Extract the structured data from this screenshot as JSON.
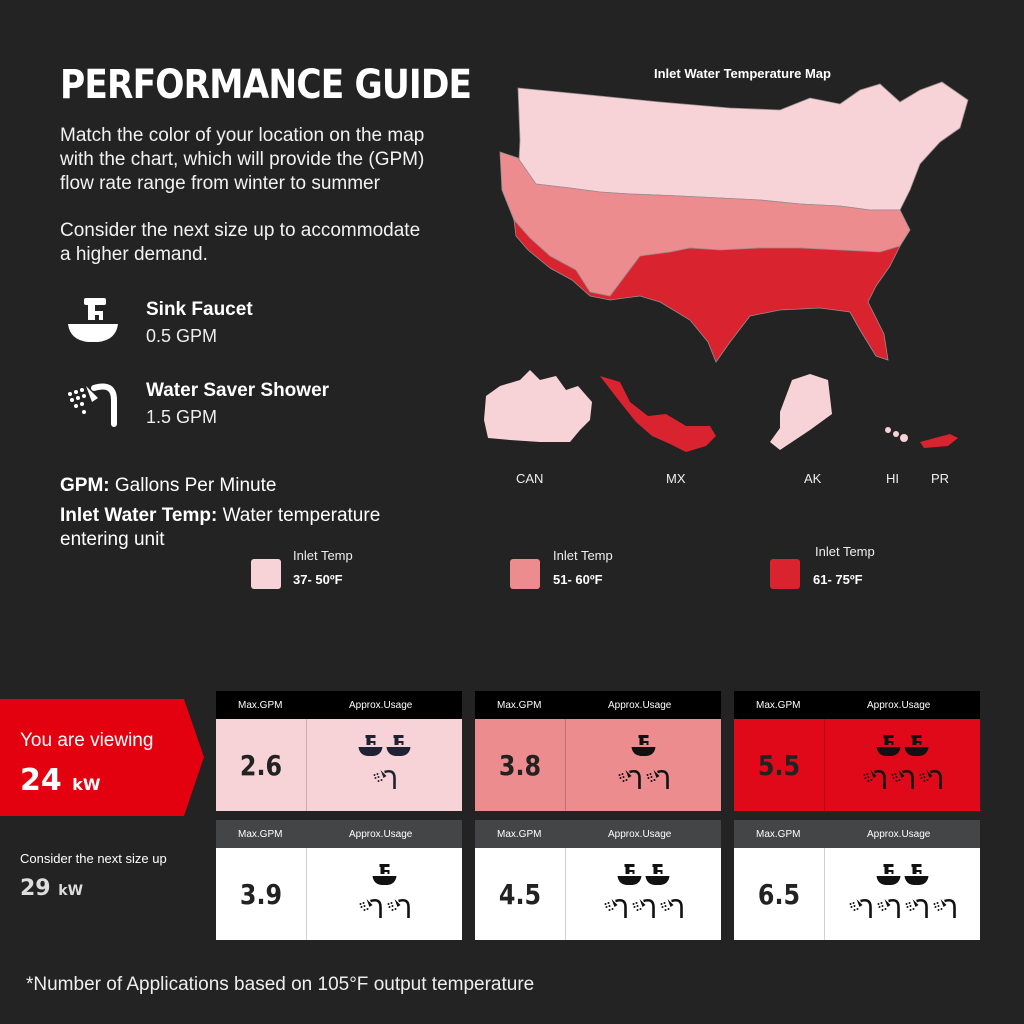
{
  "title": "PERFORMANCE GUIDE",
  "intro": {
    "line1": "Match the color of your location on the map",
    "line2": "with the chart, which will provide the (GPM)",
    "line3": "flow rate range from winter to summer",
    "line4": "Consider the next size up to accommodate",
    "line5": "a higher demand."
  },
  "applications": [
    {
      "icon": "sink-faucet-icon",
      "name": "Sink Faucet",
      "gpm": "0.5 GPM"
    },
    {
      "icon": "shower-icon",
      "name": "Water Saver Shower",
      "gpm": "1.5 GPM"
    }
  ],
  "definitions": {
    "gpm_term": "GPM:",
    "gpm_text": "Gallons Per Minute",
    "temp_term": "Inlet Water Temp:",
    "temp_text": "Water temperature",
    "temp_text2": "entering unit"
  },
  "map": {
    "title": "Inlet Water Temperature Map",
    "regions": [
      "CAN",
      "MX",
      "AK",
      "HI",
      "PR"
    ]
  },
  "legend": [
    {
      "caption": "Inlet Temp",
      "range": "37- 50ºF",
      "color": "#f7d3d8"
    },
    {
      "caption": "Inlet Temp",
      "range": "51- 60ºF",
      "color": "#ec8c8f"
    },
    {
      "caption": "Inlet Temp",
      "range": "61- 75ºF",
      "color": "#d9232e"
    }
  ],
  "current": {
    "label": "You are viewing",
    "size": "24",
    "unit": "kW"
  },
  "next": {
    "label": "Consider the next size up",
    "size": "29",
    "unit": "kW"
  },
  "table_headers": {
    "gpm": "Max.GPM",
    "usage": "Approx.Usage"
  },
  "rows": [
    [
      {
        "gpm": "2.6",
        "faucets": 2,
        "showers": 1
      },
      {
        "gpm": "3.8",
        "faucets": 1,
        "showers": 2
      },
      {
        "gpm": "5.5",
        "faucets": 2,
        "showers": 3
      }
    ],
    [
      {
        "gpm": "3.9",
        "faucets": 1,
        "showers": 2
      },
      {
        "gpm": "4.5",
        "faucets": 2,
        "showers": 3
      },
      {
        "gpm": "6.5",
        "faucets": 2,
        "showers": 4
      }
    ]
  ],
  "colors": {
    "background": "#232324",
    "banner": "#e3000f",
    "light": "#f7d3d8",
    "mid": "#ec8c8f",
    "dark": "#d9232e"
  },
  "footnote": "*Number of Applications based on 105°F output temperature"
}
